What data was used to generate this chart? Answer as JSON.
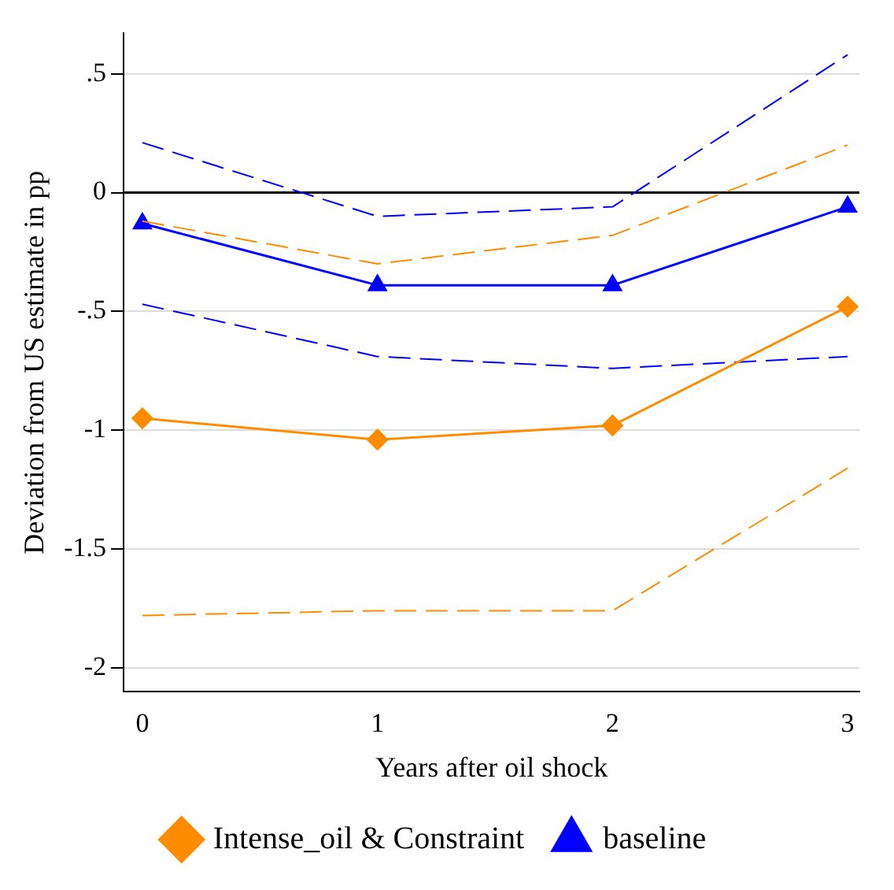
{
  "chart_data": {
    "type": "line",
    "xlabel": "Years after oil shock",
    "ylabel": "Deviation from US estimate in pp",
    "x": [
      0,
      1,
      2,
      3
    ],
    "xlim": [
      -0.08,
      3.05
    ],
    "xticks": [
      0,
      1,
      2,
      3
    ],
    "ylim": [
      -2.1,
      0.67
    ],
    "yticks": [
      {
        "value": 0.5,
        "label": ".5"
      },
      0,
      {
        "value": -0.5,
        "label": "-.5"
      },
      -1,
      -1.5,
      -2
    ],
    "series": [
      {
        "name": "Intense_oil & Constraint",
        "color": "#ff8c00",
        "marker": "diamond",
        "values": [
          -0.95,
          -1.04,
          -0.98,
          -0.48
        ]
      },
      {
        "color": "#ff8c00",
        "marker": "none",
        "line_style": "dashed",
        "values": [
          -1.78,
          -1.76,
          -1.76,
          -1.16
        ]
      },
      {
        "color": "#ff8c00",
        "marker": "none",
        "line_style": "dashed",
        "values": [
          -0.12,
          -0.3,
          -0.18,
          0.2
        ]
      },
      {
        "name": "baseline",
        "color": "#0000ff",
        "marker": "triangle",
        "values": [
          -0.13,
          -0.39,
          -0.39,
          -0.06
        ]
      },
      {
        "color": "#0000ff",
        "marker": "none",
        "line_style": "dashed",
        "values": [
          -0.47,
          -0.69,
          -0.74,
          -0.69
        ]
      },
      {
        "color": "#0000ff",
        "marker": "none",
        "line_style": "dashed",
        "values": [
          0.21,
          -0.1,
          -0.06,
          0.58
        ]
      }
    ],
    "ref_lines": [
      {
        "axis": "y",
        "value": 0,
        "color": "#000000"
      }
    ],
    "grid": "y",
    "legend": "bottom",
    "line_style": "solid"
  }
}
